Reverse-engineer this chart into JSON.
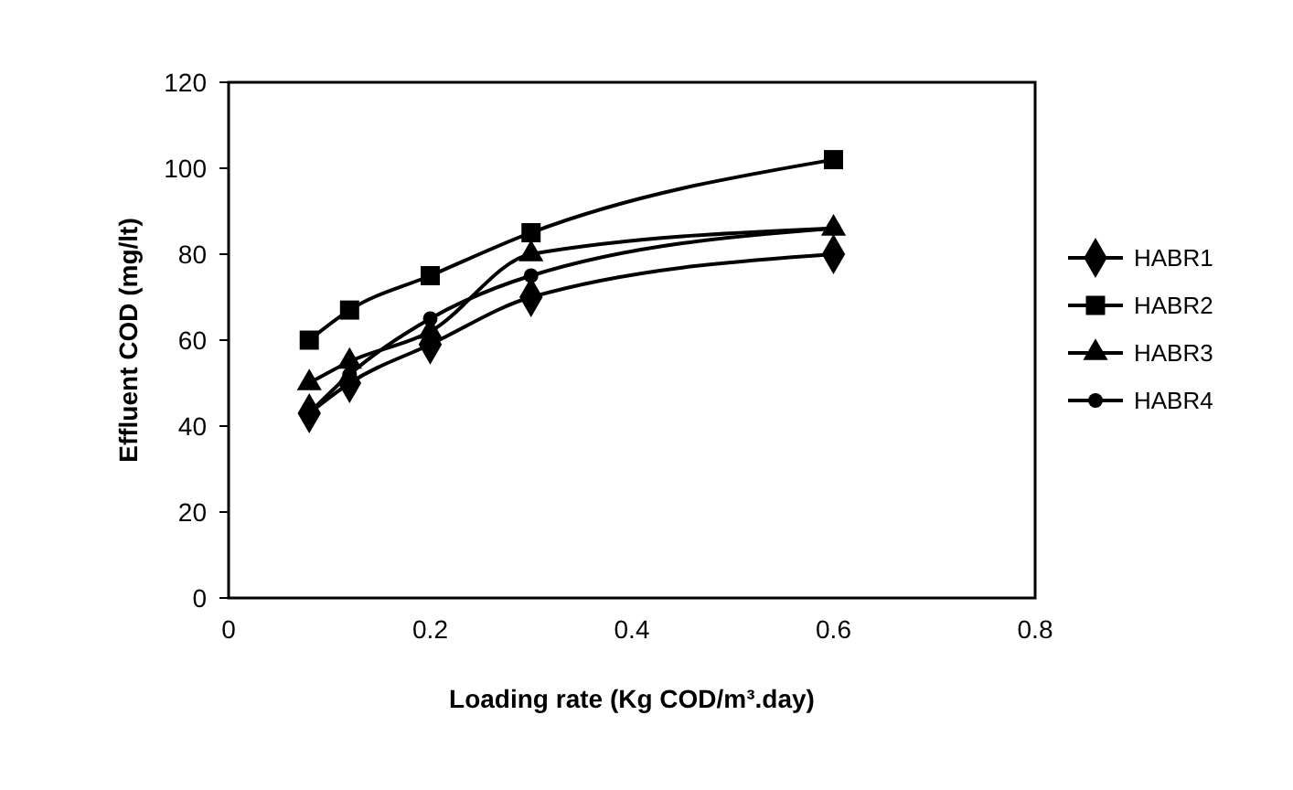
{
  "chart_data": {
    "type": "line",
    "xlabel": "Loading rate (Kg COD/m³.day)",
    "ylabel": "Effluent COD (mg/lt)",
    "x": [
      0.08,
      0.12,
      0.2,
      0.3,
      0.6
    ],
    "series": [
      {
        "name": "HABR1",
        "color": "#000000",
        "marker": "diamond",
        "values": [
          43,
          50,
          59,
          70,
          80
        ]
      },
      {
        "name": "HABR2",
        "color": "#000000",
        "marker": "square",
        "values": [
          60,
          67,
          75,
          85,
          102
        ]
      },
      {
        "name": "HABR3",
        "color": "#000000",
        "marker": "triangle",
        "values": [
          50,
          55,
          62,
          80,
          86
        ]
      },
      {
        "name": "HABR4",
        "color": "#000000",
        "marker": "circle",
        "values": [
          43,
          52,
          65,
          75,
          86
        ]
      }
    ],
    "xlim": [
      0,
      0.8
    ],
    "xticks": [
      0,
      0.2,
      0.4,
      0.6,
      0.8
    ],
    "ylim": [
      0,
      120
    ],
    "yticks": [
      0,
      20,
      40,
      60,
      80,
      100,
      120
    ],
    "grid": false,
    "legend": "right"
  }
}
